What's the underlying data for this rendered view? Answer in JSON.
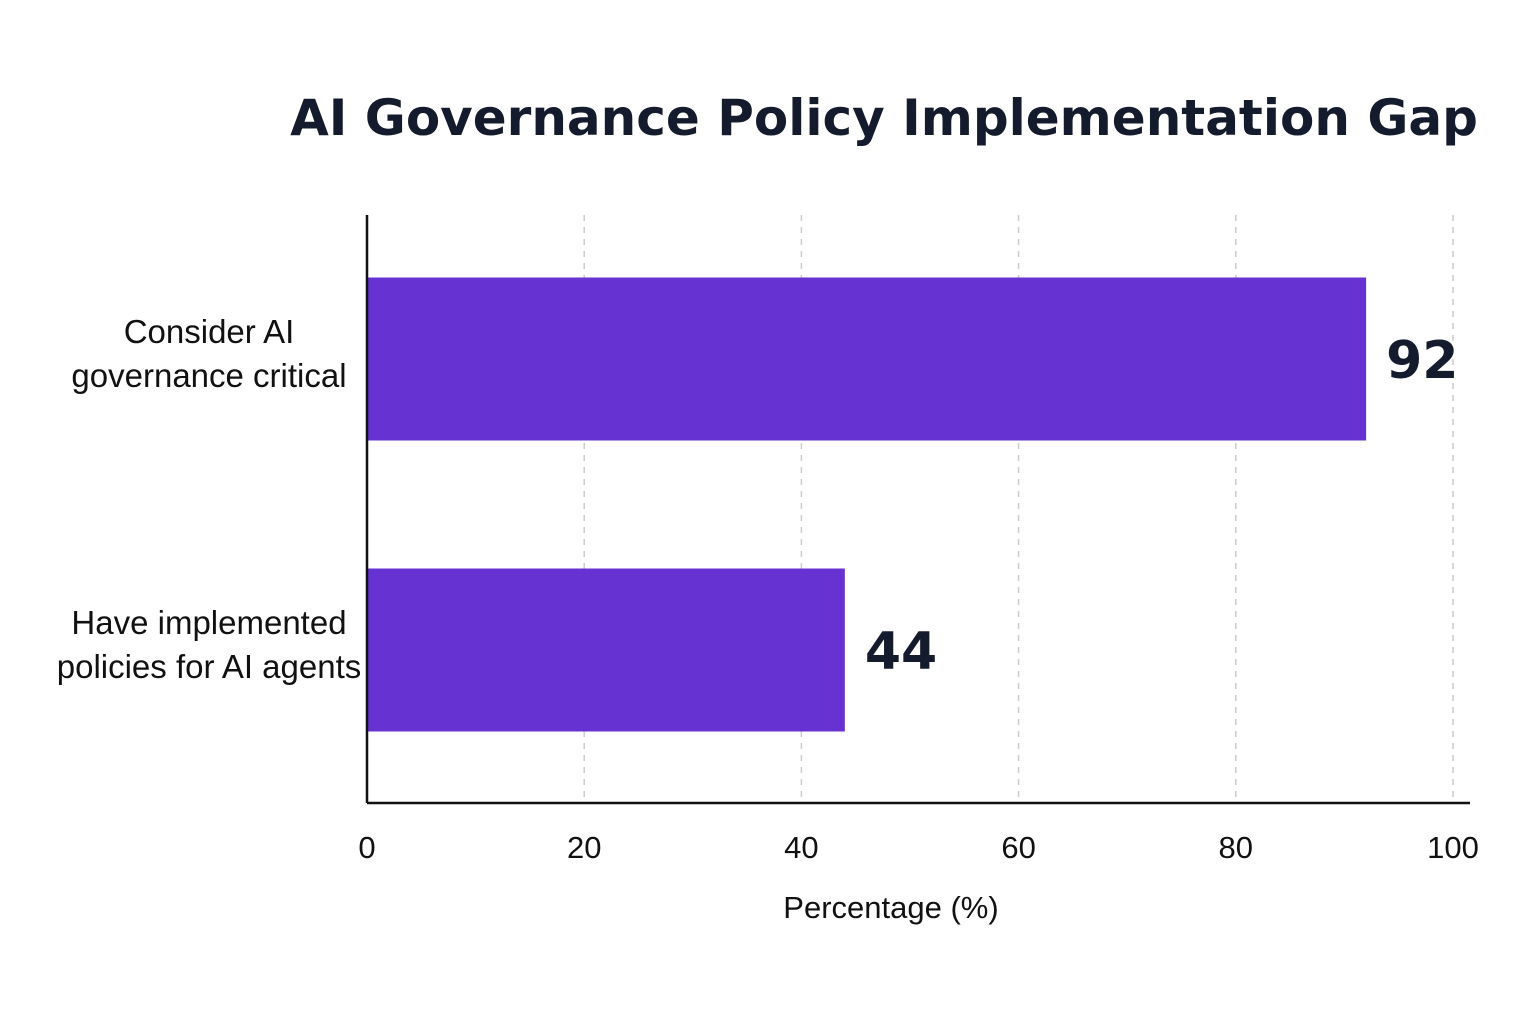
{
  "chart_data": {
    "type": "bar",
    "orientation": "horizontal",
    "title": "AI Governance Policy Implementation Gap",
    "categories": [
      [
        "Consider AI",
        "governance critical"
      ],
      [
        "Have implemented",
        "policies for AI agents"
      ]
    ],
    "values": [
      92,
      44
    ],
    "xlabel": "Percentage (%)",
    "ylabel": "",
    "xlim": [
      0,
      100
    ],
    "xticks": [
      0,
      20,
      40,
      60,
      80,
      100
    ],
    "grid": "vertical dashed",
    "legend": "none",
    "bar_color": "#6632d1",
    "gridline_color": "#cccccc",
    "axis_color": "#111111",
    "title_color": "#141b2d"
  }
}
